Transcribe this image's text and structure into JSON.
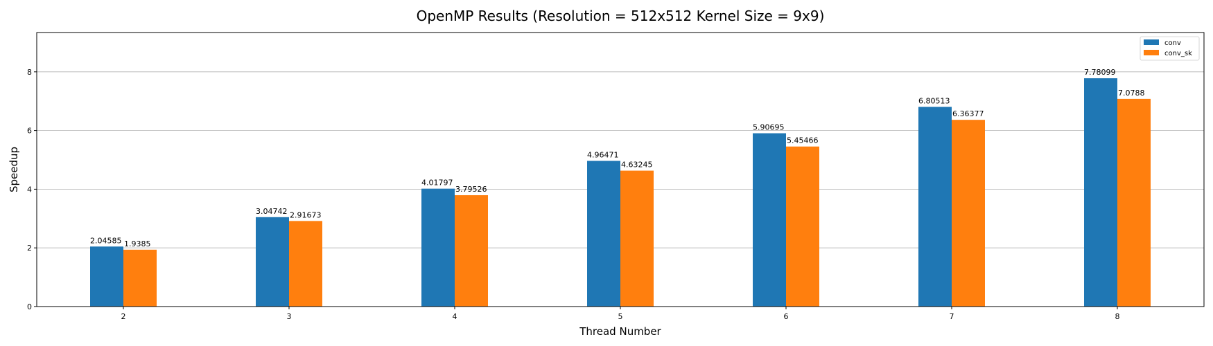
{
  "chart_data": {
    "type": "bar",
    "title": "OpenMP Results (Resolution = 512x512 Kernel Size = 9x9)",
    "xlabel": "Thread Number",
    "ylabel": "Speedup",
    "categories": [
      "2",
      "3",
      "4",
      "5",
      "6",
      "7",
      "8"
    ],
    "series": [
      {
        "name": "conv",
        "color": "#1f77b4",
        "values": [
          2.04585,
          3.04742,
          4.01797,
          4.96471,
          5.90695,
          6.80513,
          7.78099
        ],
        "labels": [
          "2.04585",
          "3.04742",
          "4.01797",
          "4.96471",
          "5.90695",
          "6.80513",
          "7.78099"
        ]
      },
      {
        "name": "conv_sk",
        "color": "#ff7f0e",
        "values": [
          1.9385,
          2.91673,
          3.79526,
          4.63245,
          5.45466,
          6.36377,
          7.0788
        ],
        "labels": [
          "1.9385",
          "2.91673",
          "3.79526",
          "4.63245",
          "5.45466",
          "6.36377",
          "7.0788"
        ]
      }
    ],
    "ylim": [
      0,
      9.34
    ],
    "yticks": [
      "0",
      "2",
      "4",
      "6",
      "8"
    ],
    "grid": "horizontal",
    "legend_position": "top-right"
  }
}
